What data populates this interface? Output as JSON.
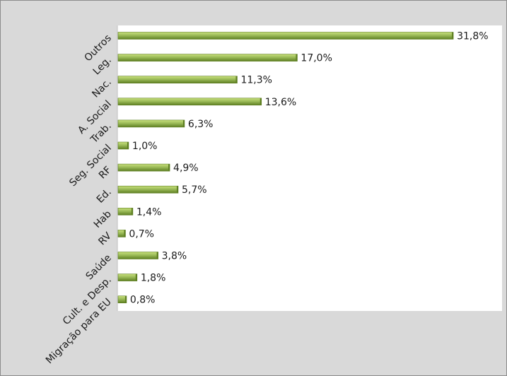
{
  "chart_data": {
    "type": "bar",
    "orientation": "horizontal",
    "categories": [
      "Outros",
      "Leg.",
      "Nac.",
      "A. Social",
      "Trab.",
      "Seg. Social",
      "RF",
      "Ed.",
      "Hab",
      "RV",
      "Saúde",
      "Cult. e Desp.",
      "Migração para EU"
    ],
    "values": [
      31.8,
      17.0,
      11.3,
      13.6,
      6.3,
      1.0,
      4.9,
      5.7,
      1.4,
      0.7,
      3.8,
      1.8,
      0.8
    ],
    "value_labels": [
      "31,8%",
      "17,0%",
      "11,3%",
      "13,6%",
      "6,3%",
      "1,0%",
      "4,9%",
      "5,7%",
      "1,4%",
      "0,7%",
      "3,8%",
      "1,8%",
      "0,8%"
    ],
    "xlim": [
      0,
      33
    ],
    "grid": false,
    "legend": "none",
    "colors": {
      "bar_light": "#c8e07a",
      "bar_mid": "#9bbb59",
      "bar_dark": "#5e7f22",
      "plot_bg": "#ffffff",
      "frame_bg": "#d9d9d9"
    }
  }
}
